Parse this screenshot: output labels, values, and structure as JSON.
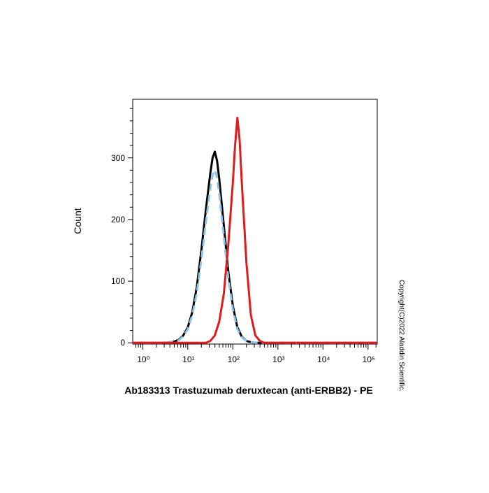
{
  "chart_data": {
    "type": "line",
    "x_label": "Ab183313 Trastuzumab deruxtecan (anti-ERBB2) - PE",
    "y_label": "Count",
    "copyright": "Copyright(C)2022 Aladdin Scientific.",
    "log_x": true,
    "xlim": [
      0.6,
      160000
    ],
    "xticks": [
      {
        "value": 1,
        "label": "10⁰"
      },
      {
        "value": 10,
        "label": "10¹"
      },
      {
        "value": 100,
        "label": "10²"
      },
      {
        "value": 1000,
        "label": "10³"
      },
      {
        "value": 10000,
        "label": "10⁴"
      },
      {
        "value": 100000,
        "label": "10⁵"
      }
    ],
    "xminorticks": [
      0.7,
      0.8,
      0.9,
      2,
      3,
      4,
      5,
      6,
      7,
      8,
      9,
      20,
      30,
      40,
      50,
      60,
      70,
      80,
      90,
      200,
      300,
      400,
      500,
      600,
      700,
      800,
      900,
      2000,
      3000,
      4000,
      5000,
      6000,
      7000,
      8000,
      9000,
      20000,
      30000,
      40000,
      50000,
      60000,
      70000,
      80000,
      90000,
      150000
    ],
    "ylim": [
      -2,
      395
    ],
    "yticks": [
      0,
      100,
      200,
      300
    ],
    "yminorticks": [
      20,
      40,
      60,
      80,
      120,
      140,
      160,
      180,
      220,
      240,
      260,
      280,
      320,
      340,
      360,
      380
    ],
    "series": [
      {
        "color": "#000000",
        "dashed": false,
        "x": [
          0.6,
          3.16,
          3.98,
          5.01,
          6.31,
          7.94,
          10,
          12.6,
          15.8,
          20,
          25.1,
          31.6,
          35.5,
          39.8,
          44.7,
          50.1,
          63.1,
          79.4,
          100,
          126,
          158,
          200,
          251,
          316,
          160000
        ],
        "values": [
          0,
          0,
          1,
          2,
          5,
          12,
          25,
          50,
          90,
          150,
          215,
          275,
          300,
          310,
          295,
          265,
          190,
          115,
          60,
          25,
          10,
          3,
          1,
          0,
          0
        ]
      },
      {
        "color": "#8fc3e8",
        "dashed": true,
        "x": [
          0.6,
          3.16,
          3.98,
          5.01,
          6.31,
          7.94,
          10,
          12.6,
          15.8,
          20,
          25.1,
          31.6,
          35.5,
          39.8,
          44.7,
          50.1,
          63.1,
          79.4,
          100,
          126,
          158,
          200,
          251,
          316,
          160000
        ],
        "values": [
          0,
          0,
          1,
          2,
          4,
          11,
          22,
          45,
          80,
          135,
          195,
          250,
          272,
          280,
          268,
          240,
          172,
          104,
          54,
          22,
          9,
          3,
          1,
          0,
          0
        ]
      },
      {
        "color": "#e01b1b",
        "dashed": false,
        "x": [
          0.6,
          25.1,
          31.6,
          39.8,
          50.1,
          63.1,
          79.4,
          100,
          112,
          126,
          141,
          158,
          200,
          251,
          316,
          398,
          501,
          160000
        ],
        "values": [
          0,
          0,
          3,
          12,
          35,
          80,
          160,
          260,
          320,
          365,
          330,
          260,
          130,
          45,
          12,
          3,
          0,
          0
        ]
      }
    ]
  }
}
